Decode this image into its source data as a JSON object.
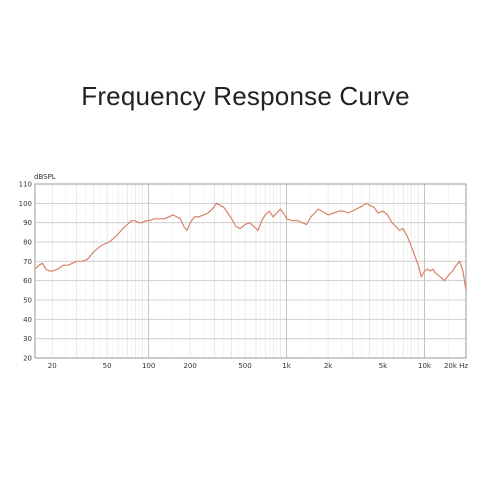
{
  "title": "Frequency Response Curve",
  "chart_data": {
    "type": "line",
    "title": "Frequency Response Curve",
    "xlabel": "",
    "ylabel": "dBSPL",
    "x_scale": "log",
    "xlim": [
      15,
      20000
    ],
    "ylim": [
      20,
      110
    ],
    "grid": true,
    "line_color": "#d9826a",
    "x_tick_labels": [
      "20",
      "50",
      "100",
      "200",
      "500",
      "1k",
      "2k",
      "5k",
      "10k",
      "20k Hz"
    ],
    "y_tick_labels": [
      "20",
      "30",
      "40",
      "50",
      "60",
      "70",
      "80",
      "90",
      "100",
      "110"
    ],
    "series": [
      {
        "x": [
          15,
          16,
          17,
          18,
          19,
          20,
          22,
          24,
          26,
          28,
          30,
          33,
          36,
          40,
          45,
          48,
          52,
          56,
          60,
          65,
          70,
          75,
          80,
          85,
          90,
          95,
          100,
          110,
          120,
          130,
          140,
          150,
          160,
          170,
          180,
          190,
          200,
          215,
          230,
          250,
          270,
          290,
          310,
          330,
          350,
          375,
          400,
          430,
          460,
          500,
          540,
          580,
          620,
          660,
          700,
          750,
          800,
          850,
          900,
          950,
          1000,
          1100,
          1200,
          1300,
          1400,
          1500,
          1600,
          1700,
          1800,
          1900,
          2000,
          2200,
          2400,
          2600,
          2800,
          3000,
          3200,
          3400,
          3600,
          3800,
          4000,
          4300,
          4600,
          5000,
          5400,
          5800,
          6200,
          6600,
          7000,
          7500,
          8000,
          8500,
          9000,
          9500,
          10000,
          10500,
          11000,
          11500,
          12000,
          13000,
          14000,
          15000,
          16000,
          17000,
          18000,
          19000,
          20000
        ],
        "y": [
          66,
          68,
          69,
          66,
          65,
          65,
          66,
          68,
          68,
          69,
          70,
          70,
          71,
          75,
          78,
          79,
          80,
          82,
          84,
          87,
          89,
          91,
          91,
          90,
          90,
          91,
          91,
          92,
          92,
          92,
          93,
          94,
          93,
          92,
          88,
          86,
          90,
          93,
          93,
          94,
          95,
          97,
          100,
          99,
          98,
          95,
          92,
          88,
          87,
          89,
          90,
          88,
          86,
          91,
          94,
          96,
          93,
          95,
          97,
          95,
          92,
          91,
          91,
          90,
          89,
          93,
          95,
          97,
          96,
          95,
          94,
          95,
          96,
          96,
          95,
          96,
          97,
          98,
          99,
          100,
          99,
          98,
          95,
          96,
          94,
          90,
          88,
          86,
          87,
          83,
          78,
          73,
          68,
          62,
          65,
          66,
          65,
          66,
          64,
          62,
          60,
          63,
          65,
          68,
          70,
          65,
          55
        ]
      }
    ]
  }
}
